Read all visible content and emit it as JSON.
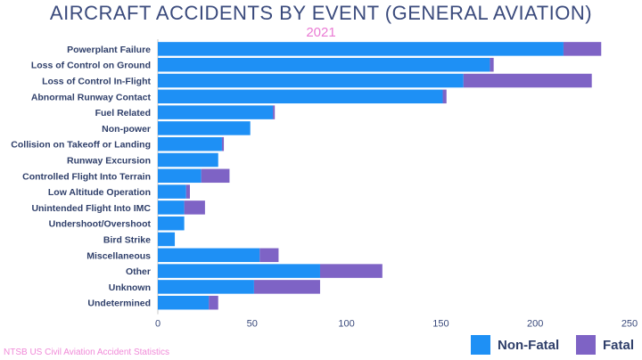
{
  "chart_data": {
    "type": "bar",
    "orientation": "horizontal",
    "stacked": true,
    "title": "AIRCRAFT ACCIDENTS BY EVENT (GENERAL AVIATION)",
    "subtitle": "2021",
    "source": "NTSB US Civil Aviation Accident Statistics",
    "categories": [
      "Powerplant Failure",
      "Loss of Control on Ground",
      "Loss of Control In-Flight",
      "Abnormal Runway Contact",
      "Fuel Related",
      "Non-power",
      "Collision on Takeoff or Landing",
      "Runway Excursion",
      "Controlled Flight Into Terrain",
      "Low Altitude Operation",
      "Unintended Flight Into IMC",
      "Undershoot/Overshoot",
      "Bird Strike",
      "Miscellaneous",
      "Other",
      "Unknown",
      "Undetermined"
    ],
    "series": [
      {
        "name": "Non-Fatal",
        "color": "#1e90f5",
        "values": [
          215,
          176,
          162,
          151,
          61,
          49,
          34,
          32,
          23,
          15,
          14,
          14,
          9,
          54,
          86,
          51,
          27
        ]
      },
      {
        "name": "Fatal",
        "color": "#7e63c5",
        "values": [
          20,
          2,
          68,
          2,
          1,
          0,
          1,
          0,
          15,
          2,
          11,
          0,
          0,
          10,
          33,
          35,
          5
        ]
      }
    ],
    "xlim": [
      0,
      250
    ],
    "xticks": [
      0,
      50,
      100,
      150,
      200,
      250
    ],
    "grid": false,
    "legend_position": "bottom-right"
  }
}
